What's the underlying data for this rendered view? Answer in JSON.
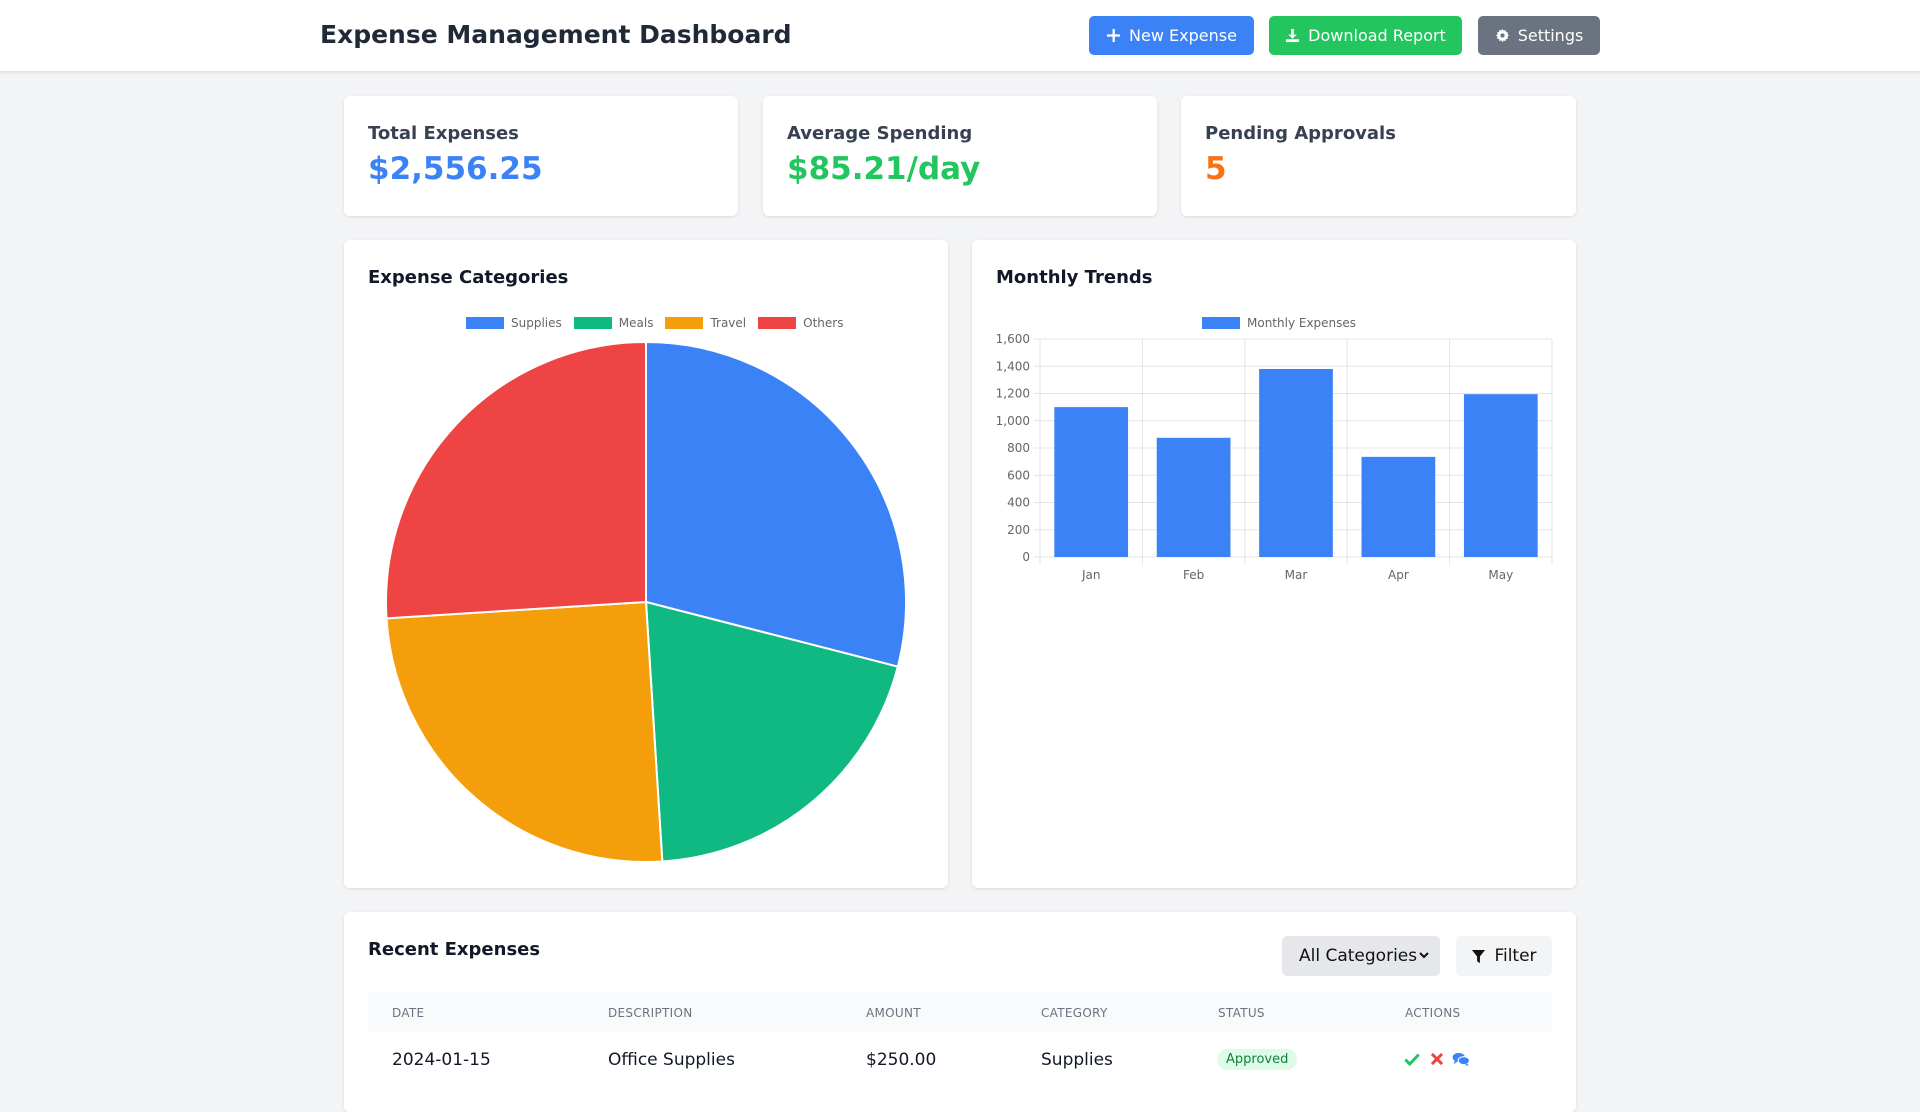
{
  "header": {
    "title": "Expense Management Dashboard",
    "new_expense": "New Expense",
    "download_report": "Download Report",
    "settings": "Settings"
  },
  "stats": [
    {
      "label": "Total Expenses",
      "value": "$2,556.25",
      "color": "#3b82f6"
    },
    {
      "label": "Average Spending",
      "value": "$85.21/day",
      "color": "#22c55e"
    },
    {
      "label": "Pending Approvals",
      "value": "5",
      "color": "#f97316"
    }
  ],
  "pie_card": {
    "title": "Expense Categories"
  },
  "bar_card": {
    "title": "Monthly Trends"
  },
  "chart_data": [
    {
      "type": "pie",
      "title": "Expense Categories",
      "categories": [
        "Supplies",
        "Meals",
        "Travel",
        "Others"
      ],
      "values": [
        29,
        20,
        25,
        26
      ],
      "colors": [
        "#3b82f6",
        "#10b981",
        "#f59e0b",
        "#ef4444"
      ],
      "legend": "top"
    },
    {
      "type": "bar",
      "title": "Monthly Trends",
      "categories": [
        "Jan",
        "Feb",
        "Mar",
        "Apr",
        "May"
      ],
      "series": [
        {
          "name": "Monthly Expenses",
          "values": [
            1100,
            875,
            1380,
            735,
            1195
          ],
          "color": "#3b82f6"
        }
      ],
      "ylim": [
        0,
        1600
      ],
      "yticks": [
        "0",
        "200",
        "400",
        "600",
        "800",
        "1,000",
        "1,200",
        "1,400",
        "1,600"
      ],
      "grid": true,
      "legend": "top"
    }
  ],
  "recent": {
    "title": "Recent Expenses",
    "category_select": "All Categories",
    "filter": "Filter",
    "columns": [
      "DATE",
      "DESCRIPTION",
      "AMOUNT",
      "CATEGORY",
      "STATUS",
      "ACTIONS"
    ],
    "rows": [
      {
        "date": "2024-01-15",
        "description": "Office Supplies",
        "amount": "$250.00",
        "category": "Supplies",
        "status": "Approved"
      }
    ]
  }
}
